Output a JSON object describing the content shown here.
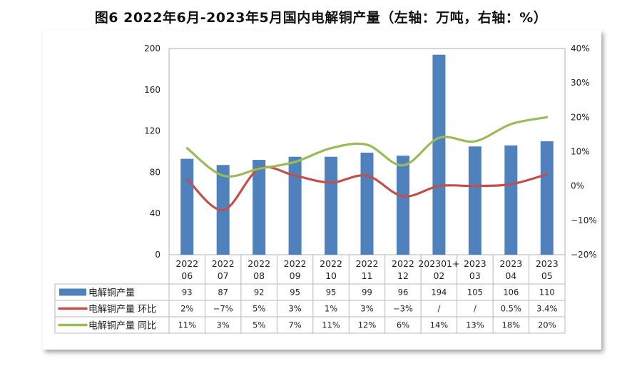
{
  "title": "图6 2022年6月-2023年5月国内电解铜产量（左轴：万吨，右轴：%）",
  "chart_data": {
    "type": "bar",
    "categories": [
      [
        "2022",
        "06"
      ],
      [
        "2022",
        "07"
      ],
      [
        "2022",
        "08"
      ],
      [
        "2022",
        "09"
      ],
      [
        "2022",
        "10"
      ],
      [
        "2022",
        "11"
      ],
      [
        "2022",
        "12"
      ],
      [
        "202301+",
        "02"
      ],
      [
        "2023",
        "03"
      ],
      [
        "2023",
        "04"
      ],
      [
        "2023",
        "05"
      ]
    ],
    "y_left": {
      "min": 0,
      "max": 200,
      "ticks": [
        "0",
        "40",
        "80",
        "120",
        "160",
        "200"
      ]
    },
    "y_right": {
      "min": -20,
      "max": 40,
      "ticks": [
        "-20%",
        "-10%",
        "0%",
        "10%",
        "20%",
        "30%",
        "40%"
      ]
    },
    "series": [
      {
        "name": "电解铜产量",
        "type": "bar",
        "axis": "left",
        "color": "#4f81bd",
        "values": [
          93,
          87,
          92,
          95,
          95,
          99,
          96,
          194,
          105,
          106,
          110
        ],
        "labels": [
          "93",
          "87",
          "92",
          "95",
          "95",
          "99",
          "96",
          "194",
          "105",
          "106",
          "110"
        ]
      },
      {
        "name": "电解铜产量 环比",
        "type": "line",
        "axis": "right",
        "color": "#c0504d",
        "values": [
          2,
          -7,
          5,
          3,
          1,
          3,
          -3,
          null,
          null,
          0.5,
          3.4
        ],
        "labels": [
          "2%",
          "-7%",
          "5%",
          "3%",
          "1%",
          "3%",
          "-3%",
          "/",
          "/",
          "0.5%",
          "3.4%"
        ]
      },
      {
        "name": "电解铜产量 同比",
        "type": "line",
        "axis": "right",
        "color": "#9bbb59",
        "values": [
          11,
          3,
          5,
          7,
          11,
          12,
          6,
          14,
          13,
          18,
          20
        ],
        "labels": [
          "11%",
          "3%",
          "5%",
          "7%",
          "11%",
          "12%",
          "6%",
          "14%",
          "13%",
          "18%",
          "20%"
        ]
      }
    ]
  }
}
